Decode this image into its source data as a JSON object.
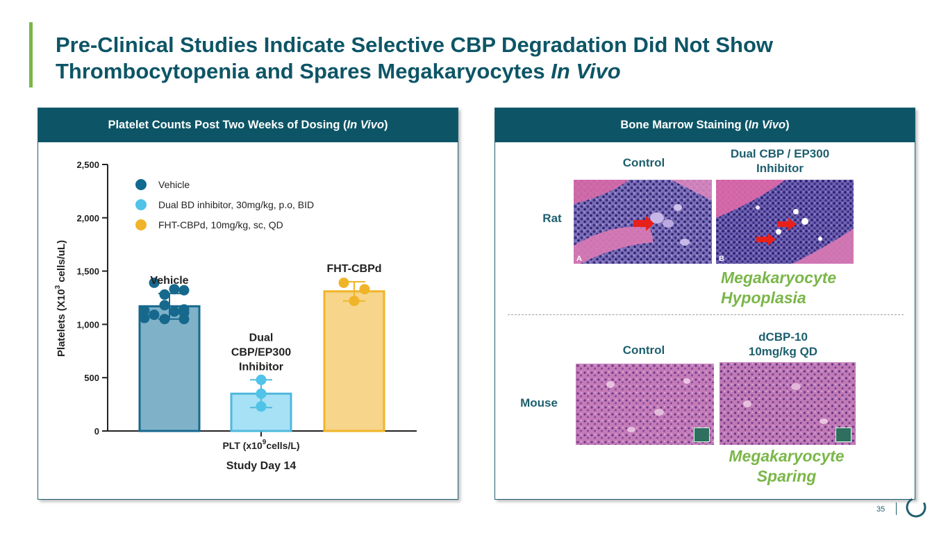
{
  "slide": {
    "title_line1": "Pre-Clinical Studies Indicate Selective CBP Degradation Did Not Show",
    "title_line2_main": "Thrombocytopenia and Spares Megakaryocytes ",
    "title_line2_italic": "In Vivo",
    "page_number": "35"
  },
  "left_panel": {
    "header_main": "Platelet Counts Post Two Weeks of Dosing (",
    "header_italic": "In Vivo",
    "header_end": ")"
  },
  "right_panel": {
    "header_main": "Bone Marrow Staining (",
    "header_italic": "In Vivo",
    "header_end": ")",
    "rat_label": "Rat",
    "mouse_label": "Mouse",
    "rat_control_label": "Control",
    "rat_treatment_label_line1": "Dual CBP / EP300",
    "rat_treatment_label_line2": "Inhibitor",
    "rat_outcome_line1": "Megakaryocyte",
    "rat_outcome_line2": "Hypoplasia",
    "mouse_control_label": "Control",
    "mouse_treatment_label_line1": "dCBP-10",
    "mouse_treatment_label_line2": "10mg/kg QD",
    "mouse_outcome_line1": "Megakaryocyte",
    "mouse_outcome_line2": "Sparing",
    "rat_image_a_letter": "A",
    "rat_image_b_letter": "B"
  },
  "chart_data": {
    "type": "bar",
    "ylabel_main": "Platelets  (X10",
    "ylabel_sup": "3",
    "ylabel_end": " cells/uL)",
    "xlabel_main": "PLT (x10",
    "xlabel_sup": "9",
    "xlabel_end": "cells/L)",
    "subtitle": "Study Day 14",
    "ylim": [
      0,
      2500
    ],
    "yticks": [
      0,
      500,
      1000,
      1500,
      2000,
      2500
    ],
    "ytick_labels": [
      "0",
      "500",
      "1,000",
      "1,500",
      "2,000",
      "2,500"
    ],
    "legend": [
      {
        "label": "Vehicle",
        "color": "#0f6a8f"
      },
      {
        "label": "Dual BD inhibitor, 30mg/kg, p.o, BID",
        "color": "#4fc3e8"
      },
      {
        "label": "FHT-CBPd, 10mg/kg, sc, QD",
        "color": "#f0b429"
      }
    ],
    "series": [
      {
        "name": "Vehicle",
        "label_lines": [
          "Vehicle"
        ],
        "value": 1170,
        "error": 120,
        "fill": "#7fb1c9",
        "stroke": "#16698d",
        "dot_color": "#16698d",
        "points": [
          1390,
          1330,
          1320,
          1280,
          1180,
          1140,
          1130,
          1120,
          1110,
          1090,
          1060,
          1050,
          1050
        ]
      },
      {
        "name": "Dual CBP/EP300 Inhibitor",
        "label_lines": [
          "Dual",
          "CBP/EP300",
          "Inhibitor"
        ],
        "value": 350,
        "error": 130,
        "fill": "#a7e1f5",
        "stroke": "#4fb8de",
        "dot_color": "#4fc3e8",
        "points": [
          480,
          350,
          230
        ]
      },
      {
        "name": "FHT-CBPd",
        "label_lines": [
          "FHT-CBPd"
        ],
        "value": 1310,
        "error": 90,
        "fill": "#f7d58a",
        "stroke": "#f0b429",
        "dot_color": "#f0b429",
        "points": [
          1390,
          1330,
          1220
        ]
      }
    ]
  }
}
